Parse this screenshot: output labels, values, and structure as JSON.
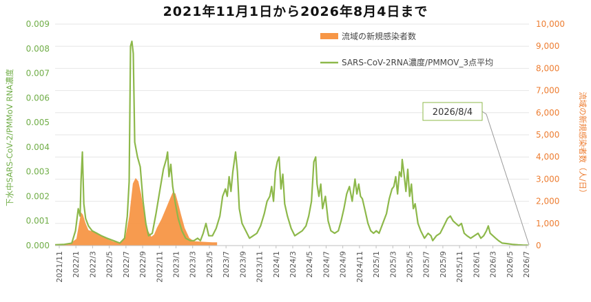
{
  "chart_data": {
    "type": "combo",
    "title": "2021年11月1日から2026年8月4日まで",
    "ylabel_left": "下水中SARS-CoV-2/PMMoV RNA濃度",
    "ylabel_right": "流域の新規感染者数（人/日）",
    "ylim_left": [
      0,
      0.009
    ],
    "ylim_right": [
      0,
      10000
    ],
    "left_ticks": [
      "0.000",
      "0.001",
      "0.002",
      "0.003",
      "0.004",
      "0.005",
      "0.006",
      "0.007",
      "0.008",
      "0.009"
    ],
    "right_ticks": [
      "0",
      "1,000",
      "2,000",
      "3,000",
      "4,000",
      "5,000",
      "6,000",
      "7,000",
      "8,000",
      "9,000",
      "10,000"
    ],
    "x_categories": [
      "2021/11",
      "2022/1",
      "2022/3",
      "2022/5",
      "2022/7",
      "2022/9",
      "2022/11",
      "2023/1",
      "2023/3",
      "2023/5",
      "2023/7",
      "2023/9",
      "2023/11",
      "2024/1",
      "2024/3",
      "2024/5",
      "2024/7",
      "2024/9",
      "2024/11",
      "2025/1",
      "2025/3",
      "2025/5",
      "2025/7",
      "2025/9",
      "2025/11",
      "2026/1",
      "2026/3",
      "2026/5",
      "2026/7"
    ],
    "series": [
      {
        "name": "流域の新規感染者数",
        "kind": "area",
        "axis": "right",
        "color": "#f79646",
        "points": [
          [
            0,
            30
          ],
          [
            1.5,
            60
          ],
          [
            2.3,
            300
          ],
          [
            2.6,
            1000
          ],
          [
            2.8,
            1500
          ],
          [
            3.0,
            1400
          ],
          [
            3.3,
            1000
          ],
          [
            3.6,
            700
          ],
          [
            4.0,
            650
          ],
          [
            4.5,
            600
          ],
          [
            5.0,
            450
          ],
          [
            5.6,
            300
          ],
          [
            6.3,
            180
          ],
          [
            7.0,
            150
          ],
          [
            7.6,
            400
          ],
          [
            8.0,
            1300
          ],
          [
            8.4,
            2800
          ],
          [
            8.7,
            3050
          ],
          [
            9.0,
            2900
          ],
          [
            9.3,
            2300
          ],
          [
            9.6,
            1500
          ],
          [
            10.0,
            700
          ],
          [
            10.4,
            400
          ],
          [
            10.7,
            500
          ],
          [
            11.0,
            800
          ],
          [
            11.5,
            1200
          ],
          [
            12.0,
            1700
          ],
          [
            12.4,
            2100
          ],
          [
            12.7,
            2400
          ],
          [
            13.0,
            2350
          ],
          [
            13.3,
            1900
          ],
          [
            13.6,
            1400
          ],
          [
            14.0,
            800
          ],
          [
            14.5,
            350
          ],
          [
            15.0,
            200
          ],
          [
            16.0,
            170
          ],
          [
            17.0,
            150
          ],
          [
            17.5,
            150
          ]
        ]
      },
      {
        "name": "SARS-CoV-2RNA濃度/PMMOV_3点平均",
        "kind": "line",
        "axis": "left",
        "color": "#8db84a",
        "points": [
          [
            0,
            3e-05
          ],
          [
            1.0,
            5e-05
          ],
          [
            1.8,
            0.0001
          ],
          [
            2.2,
            0.0006
          ],
          [
            2.5,
            0.0015
          ],
          [
            2.7,
            0.0012
          ],
          [
            2.8,
            0.0026
          ],
          [
            2.95,
            0.0038
          ],
          [
            3.1,
            0.0017
          ],
          [
            3.3,
            0.0011
          ],
          [
            3.6,
            0.0008
          ],
          [
            4.0,
            0.0006
          ],
          [
            4.5,
            0.0005
          ],
          [
            5.0,
            0.0004
          ],
          [
            5.6,
            0.0003
          ],
          [
            6.3,
            0.0002
          ],
          [
            7.0,
            0.0001
          ],
          [
            7.5,
            0.0003
          ],
          [
            7.8,
            0.0012
          ],
          [
            8.0,
            0.0026
          ],
          [
            8.15,
            0.0081
          ],
          [
            8.3,
            0.0083
          ],
          [
            8.45,
            0.0078
          ],
          [
            8.6,
            0.0042
          ],
          [
            8.9,
            0.0036
          ],
          [
            9.2,
            0.0032
          ],
          [
            9.5,
            0.0018
          ],
          [
            9.8,
            0.0009
          ],
          [
            10.1,
            0.0004
          ],
          [
            10.5,
            0.0005
          ],
          [
            10.9,
            0.0013
          ],
          [
            11.3,
            0.0022
          ],
          [
            11.7,
            0.0031
          ],
          [
            12.0,
            0.0035
          ],
          [
            12.15,
            0.0038
          ],
          [
            12.3,
            0.0028
          ],
          [
            12.5,
            0.0033
          ],
          [
            12.7,
            0.0024
          ],
          [
            13.0,
            0.0017
          ],
          [
            13.3,
            0.0011
          ],
          [
            13.7,
            0.0006
          ],
          [
            14.1,
            0.0003
          ],
          [
            14.6,
            0.0002
          ],
          [
            15.0,
            0.0002
          ],
          [
            15.4,
            0.0003
          ],
          [
            15.7,
            0.0002
          ],
          [
            16.0,
            0.0005
          ],
          [
            16.3,
            0.0009
          ],
          [
            16.6,
            0.0004
          ],
          [
            17.0,
            0.0004
          ],
          [
            17.4,
            0.0007
          ],
          [
            17.8,
            0.0012
          ],
          [
            18.1,
            0.002
          ],
          [
            18.4,
            0.0023
          ],
          [
            18.6,
            0.002
          ],
          [
            18.8,
            0.0028
          ],
          [
            19.0,
            0.0022
          ],
          [
            19.2,
            0.003
          ],
          [
            19.5,
            0.0038
          ],
          [
            19.7,
            0.003
          ],
          [
            19.9,
            0.0015
          ],
          [
            20.2,
            0.0009
          ],
          [
            20.6,
            0.0006
          ],
          [
            21.0,
            0.0003
          ],
          [
            21.4,
            0.0004
          ],
          [
            21.8,
            0.0005
          ],
          [
            22.2,
            0.0008
          ],
          [
            22.6,
            0.0013
          ],
          [
            22.9,
            0.0018
          ],
          [
            23.2,
            0.002
          ],
          [
            23.4,
            0.0024
          ],
          [
            23.6,
            0.0018
          ],
          [
            23.8,
            0.003
          ],
          [
            24.0,
            0.0034
          ],
          [
            24.2,
            0.0036
          ],
          [
            24.4,
            0.0023
          ],
          [
            24.6,
            0.0029
          ],
          [
            24.8,
            0.0017
          ],
          [
            25.1,
            0.0012
          ],
          [
            25.5,
            0.0007
          ],
          [
            25.9,
            0.0004
          ],
          [
            26.3,
            0.0005
          ],
          [
            26.7,
            0.0006
          ],
          [
            27.1,
            0.0008
          ],
          [
            27.4,
            0.0012
          ],
          [
            27.7,
            0.0018
          ],
          [
            27.95,
            0.0034
          ],
          [
            28.15,
            0.0036
          ],
          [
            28.3,
            0.0025
          ],
          [
            28.5,
            0.002
          ],
          [
            28.7,
            0.0025
          ],
          [
            28.9,
            0.0015
          ],
          [
            29.2,
            0.002
          ],
          [
            29.5,
            0.001
          ],
          [
            29.8,
            0.0006
          ],
          [
            30.2,
            0.0005
          ],
          [
            30.6,
            0.0006
          ],
          [
            30.9,
            0.001
          ],
          [
            31.2,
            0.0015
          ],
          [
            31.5,
            0.0021
          ],
          [
            31.8,
            0.0024
          ],
          [
            32.1,
            0.0018
          ],
          [
            32.4,
            0.0027
          ],
          [
            32.6,
            0.0021
          ],
          [
            32.8,
            0.0025
          ],
          [
            33.0,
            0.002
          ],
          [
            33.2,
            0.0019
          ],
          [
            33.5,
            0.0014
          ],
          [
            33.8,
            0.0009
          ],
          [
            34.1,
            0.0006
          ],
          [
            34.4,
            0.0005
          ],
          [
            34.7,
            0.0006
          ],
          [
            35.0,
            0.0005
          ],
          [
            35.4,
            0.0009
          ],
          [
            35.8,
            0.0013
          ],
          [
            36.1,
            0.0019
          ],
          [
            36.4,
            0.0023
          ],
          [
            36.6,
            0.0024
          ],
          [
            36.8,
            0.0028
          ],
          [
            37.0,
            0.0021
          ],
          [
            37.2,
            0.003
          ],
          [
            37.4,
            0.0028
          ],
          [
            37.5,
            0.0035
          ],
          [
            37.7,
            0.0029
          ],
          [
            37.9,
            0.0022
          ],
          [
            38.1,
            0.0031
          ],
          [
            38.3,
            0.002
          ],
          [
            38.5,
            0.0025
          ],
          [
            38.7,
            0.0015
          ],
          [
            38.9,
            0.0017
          ],
          [
            39.2,
            0.0009
          ],
          [
            39.5,
            0.0006
          ],
          [
            39.9,
            0.0003
          ],
          [
            40.3,
            0.0005
          ],
          [
            40.6,
            0.0004
          ],
          [
            40.8,
            0.0002
          ],
          [
            41.2,
            0.0004
          ],
          [
            41.6,
            0.0005
          ],
          [
            42.0,
            0.0008
          ],
          [
            42.4,
            0.0011
          ],
          [
            42.7,
            0.0012
          ],
          [
            43.0,
            0.001
          ],
          [
            43.3,
            0.0009
          ],
          [
            43.6,
            0.0008
          ],
          [
            43.9,
            0.0009
          ],
          [
            44.2,
            0.0005
          ],
          [
            44.5,
            0.0004
          ],
          [
            44.9,
            0.0003
          ],
          [
            45.3,
            0.0004
          ],
          [
            45.7,
            0.0005
          ],
          [
            46.0,
            0.0003
          ],
          [
            46.3,
            0.0004
          ],
          [
            46.6,
            0.0006
          ],
          [
            46.8,
            0.0008
          ],
          [
            47.0,
            0.0005
          ],
          [
            47.3,
            0.0004
          ],
          [
            47.6,
            0.0003
          ],
          [
            47.9,
            0.0002
          ],
          [
            48.3,
            0.0001
          ],
          [
            48.8,
            8e-05
          ],
          [
            49.4,
            5e-05
          ],
          [
            50.0,
            3e-05
          ],
          [
            50.6,
            2e-05
          ],
          [
            51.1,
            2e-05
          ]
        ]
      }
    ],
    "callout": "2026/8/4",
    "legend_position": "top-center-right"
  }
}
